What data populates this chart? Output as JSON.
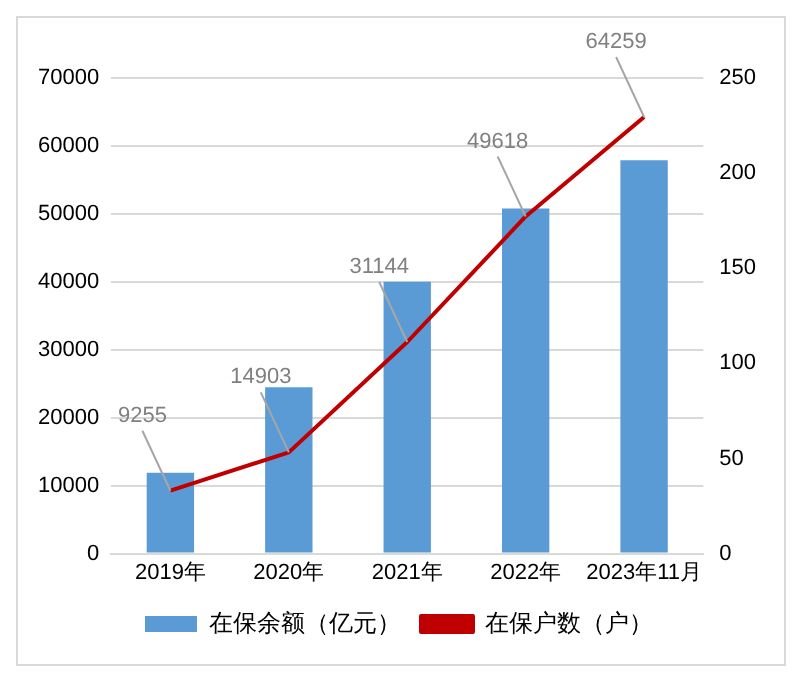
{
  "chart_data": {
    "type": "bar",
    "categories": [
      "2019年",
      "2020年",
      "2021年",
      "2022年",
      "2023年11月"
    ],
    "series": [
      {
        "name": "在保余额（亿元）",
        "color": "#5b9bd5",
        "values": [
          11900,
          24500,
          40000,
          50800,
          57900
        ]
      },
      {
        "name": "在保户数（户）",
        "type": "line",
        "color": "#c00000",
        "values": [
          9255,
          14903,
          31144,
          49618,
          64259
        ],
        "value_labels": [
          "9255",
          "14903",
          "31144",
          "49618",
          "64259"
        ]
      }
    ],
    "ylim": [
      0,
      70000
    ],
    "yticks": [
      0,
      10000,
      20000,
      30000,
      40000,
      50000,
      60000,
      70000
    ],
    "y2lim": [
      0,
      250
    ],
    "y2ticks": [
      0,
      50,
      100,
      150,
      200,
      250
    ],
    "grid": "y",
    "legend": "bottom",
    "marker": "none"
  }
}
